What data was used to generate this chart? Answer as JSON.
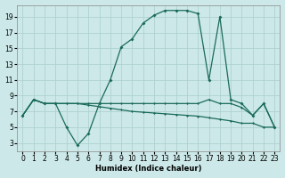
{
  "xlabel": "Humidex (Indice chaleur)",
  "background_color": "#cce8e8",
  "grid_color": "#aacece",
  "line_color": "#1a6b5a",
  "xlim": [
    -0.5,
    23.5
  ],
  "ylim": [
    2,
    20.5
  ],
  "yticks": [
    3,
    5,
    7,
    9,
    11,
    13,
    15,
    17,
    19
  ],
  "xticks": [
    0,
    1,
    2,
    3,
    4,
    5,
    6,
    7,
    8,
    9,
    10,
    11,
    12,
    13,
    14,
    15,
    16,
    17,
    18,
    19,
    20,
    21,
    22,
    23
  ],
  "line1_x": [
    0,
    1,
    2,
    3,
    4,
    5,
    6,
    7,
    8,
    9,
    10,
    11,
    12,
    13,
    14,
    15,
    16,
    17,
    18,
    19,
    20,
    21,
    22,
    23
  ],
  "line1_y": [
    6.5,
    8.5,
    8,
    8,
    5,
    2.7,
    4.2,
    8,
    11,
    15.2,
    16.2,
    18.2,
    19.2,
    19.8,
    19.8,
    19.8,
    19.4,
    11,
    19,
    8.5,
    8,
    6.5,
    8,
    5
  ],
  "line2_x": [
    0,
    1,
    2,
    3,
    4,
    5,
    6,
    7,
    8,
    9,
    10,
    11,
    12,
    13,
    14,
    15,
    16,
    17,
    18,
    19,
    20,
    21,
    22,
    23
  ],
  "line2_y": [
    6.5,
    8.5,
    8,
    8,
    8,
    8,
    8,
    8,
    8,
    8,
    8,
    8,
    8,
    8,
    8,
    8,
    8,
    8.5,
    8,
    8,
    7.5,
    6.5,
    8,
    5
  ],
  "line3_x": [
    0,
    1,
    2,
    3,
    4,
    5,
    6,
    7,
    8,
    9,
    10,
    11,
    12,
    13,
    14,
    15,
    16,
    17,
    18,
    19,
    20,
    21,
    22,
    23
  ],
  "line3_y": [
    6.5,
    8.5,
    8,
    8,
    8,
    8,
    7.8,
    7.6,
    7.4,
    7.2,
    7.0,
    6.9,
    6.8,
    6.7,
    6.6,
    6.5,
    6.4,
    6.2,
    6.0,
    5.8,
    5.5,
    5.5,
    5.0,
    5.0
  ]
}
